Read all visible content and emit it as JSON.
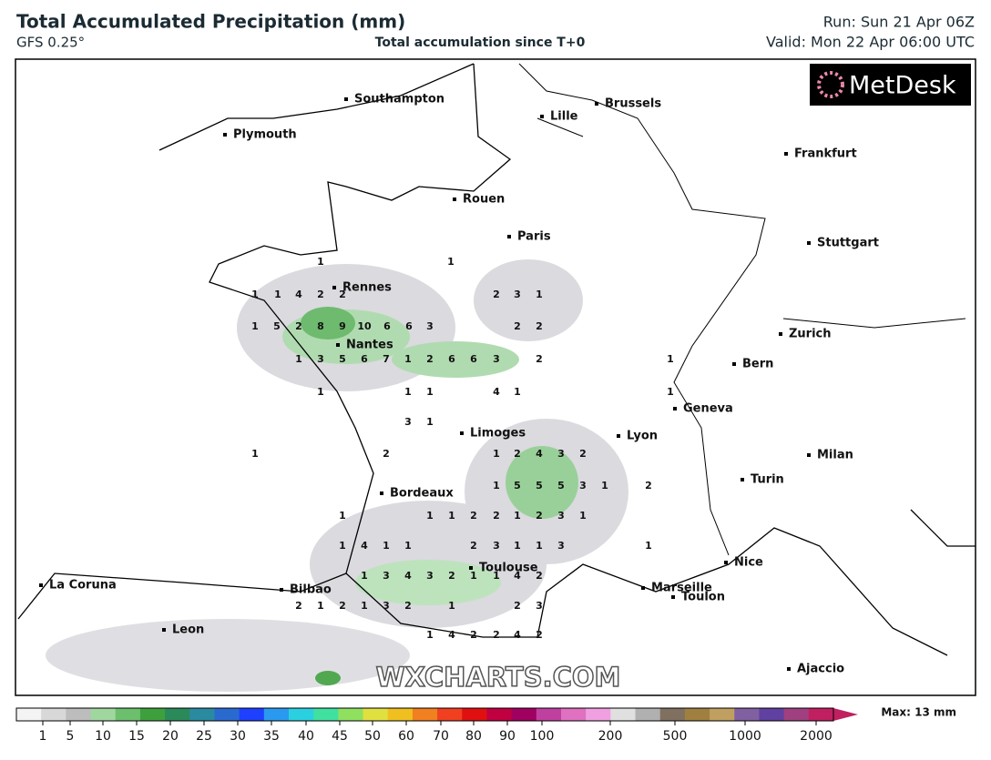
{
  "header": {
    "title": "Total Accumulated Precipitation (mm)",
    "model": "GFS 0.25°",
    "subtitle": "Total accumulation since T+0",
    "run": "Run: Sun 21 Apr 06Z",
    "valid": "Valid: Mon 22 Apr 06:00 UTC"
  },
  "logo": "MetDesk",
  "watermark": "WXCHARTS.COM",
  "cities": [
    "Southampton",
    "Brussels",
    "Lille",
    "Plymouth",
    "Frankfurt",
    "Rouen",
    "Paris",
    "Stuttgart",
    "Rennes",
    "Zurich",
    "Nantes",
    "Bern",
    "Geneva",
    "Limoges",
    "Lyon",
    "Milan",
    "Turin",
    "Bordeaux",
    "Nice",
    "Toulouse",
    "La Coruna",
    "Marseille",
    "Bilbao",
    "Toulon",
    "Leon",
    "Ajaccio"
  ],
  "precip_values": [
    1,
    1,
    1,
    1,
    4,
    2,
    2,
    2,
    3,
    1,
    1,
    5,
    2,
    8,
    9,
    10,
    6,
    6,
    3,
    2,
    2,
    1,
    3,
    5,
    6,
    7,
    1,
    2,
    6,
    6,
    3,
    2,
    1,
    1,
    1,
    1,
    4,
    1,
    1,
    3,
    1,
    1,
    2,
    1,
    2,
    4,
    3,
    2,
    1,
    5,
    5,
    5,
    3,
    1,
    2,
    1,
    1,
    1,
    2,
    2,
    1,
    2,
    3,
    1,
    1,
    4,
    1,
    1,
    2,
    3,
    1,
    1,
    3,
    1,
    1,
    3,
    4,
    3,
    2,
    1,
    1,
    4,
    2,
    2,
    1,
    2,
    1,
    3,
    2,
    1,
    2,
    3,
    1,
    4,
    2,
    2,
    4,
    2
  ],
  "legend": {
    "labels": [
      "1",
      "5",
      "10",
      "15",
      "20",
      "25",
      "30",
      "35",
      "40",
      "45",
      "50",
      "60",
      "70",
      "80",
      "90",
      "100",
      "200",
      "500",
      "1000",
      "2000"
    ],
    "max": "Max: 13 mm"
  }
}
